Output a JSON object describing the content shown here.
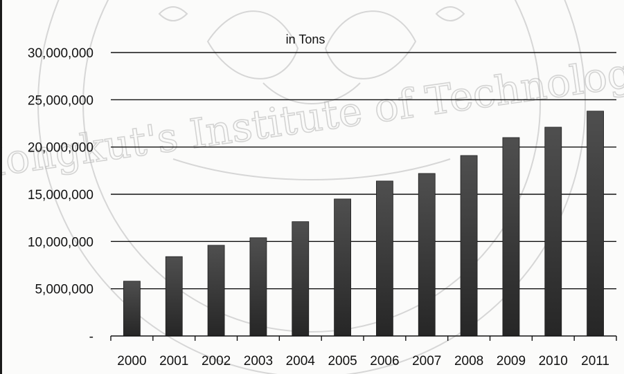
{
  "chart_data": {
    "type": "bar",
    "title": "in Tons",
    "xlabel": "",
    "ylabel": "",
    "categories": [
      "2000",
      "2001",
      "2002",
      "2003",
      "2004",
      "2005",
      "2006",
      "2007",
      "2008",
      "2009",
      "2010",
      "2011"
    ],
    "series": [
      {
        "values": [
          5800000,
          8400000,
          9600000,
          10400000,
          12100000,
          14500000,
          16400000,
          17200000,
          19100000,
          21000000,
          22100000,
          23800000
        ]
      }
    ],
    "ylim": [
      0,
      30000000
    ],
    "y_ticks": [
      {
        "value": 0,
        "label": "-"
      },
      {
        "value": 5000000,
        "label": "5,000,000"
      },
      {
        "value": 10000000,
        "label": "10,000,000"
      },
      {
        "value": 15000000,
        "label": "15,000,000"
      },
      {
        "value": 20000000,
        "label": "20,000,000"
      },
      {
        "value": 25000000,
        "label": "25,000,000"
      },
      {
        "value": 30000000,
        "label": "30,000,000"
      }
    ],
    "grid": true,
    "legend": "none",
    "colors": {
      "bar_top": "#4f4f4f",
      "bar_bottom": "#262626",
      "gridline": "#111111",
      "axis": "#111111",
      "background": "#fbfbfa"
    }
  },
  "watermark": {
    "text": "Mongkut's Institute of Technology"
  }
}
